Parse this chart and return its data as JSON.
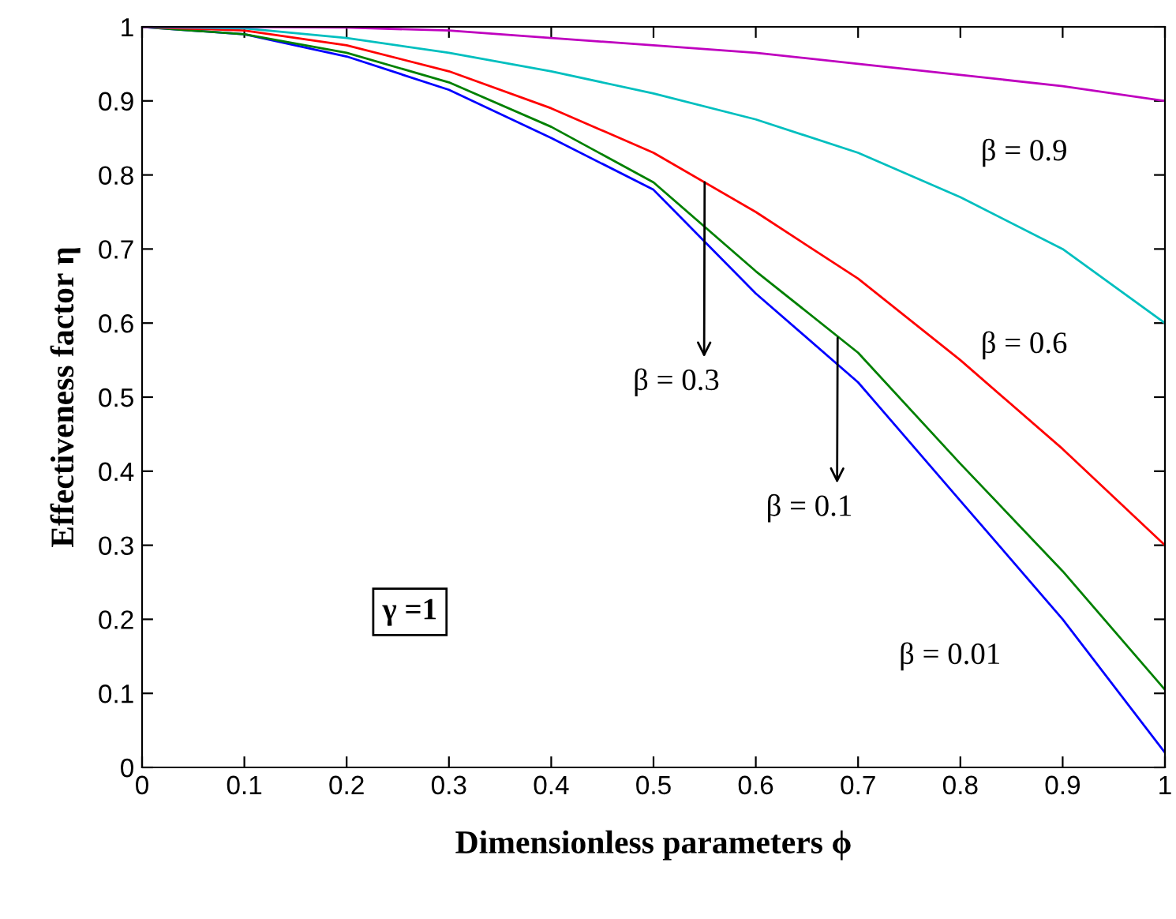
{
  "chart_data": {
    "type": "line",
    "xlabel": "Dimensionless parameters ϕ",
    "ylabel": "Effectiveness factor η",
    "x": [
      0,
      0.1,
      0.2,
      0.3,
      0.4,
      0.5,
      0.6,
      0.7,
      0.8,
      0.9,
      1
    ],
    "series": [
      {
        "color": "#0000ff",
        "values": [
          1,
          0.99,
          0.96,
          0.915,
          0.85,
          0.78,
          0.64,
          0.52,
          0.36,
          0.2,
          0.02
        ]
      },
      {
        "color": "#008000",
        "values": [
          1,
          0.99,
          0.965,
          0.925,
          0.865,
          0.79,
          0.67,
          0.56,
          0.41,
          0.265,
          0.105
        ]
      },
      {
        "color": "#ff0000",
        "values": [
          1,
          0.995,
          0.975,
          0.94,
          0.89,
          0.83,
          0.75,
          0.66,
          0.55,
          0.43,
          0.3
        ]
      },
      {
        "color": "#00bfbf",
        "values": [
          1,
          0.998,
          0.985,
          0.965,
          0.94,
          0.91,
          0.875,
          0.83,
          0.77,
          0.7,
          0.6
        ]
      },
      {
        "color": "#bf00bf",
        "values": [
          1,
          1,
          0.999,
          0.995,
          0.985,
          0.975,
          0.965,
          0.95,
          0.935,
          0.92,
          0.9
        ]
      }
    ],
    "annotations": [
      "γ =1",
      {
        "text": "β = 0.9",
        "x": 0.95,
        "y": 0.91
      },
      {
        "text": "β = 0.6",
        "x": 0.95,
        "y": 0.65
      },
      {
        "text": "β = 0.3",
        "x": 0.55,
        "y": 0.79
      },
      {
        "text": "β = 0.1",
        "x": 0.68,
        "y": 0.58
      },
      {
        "text": "β = 0.01",
        "x": 0.9,
        "y": 0.2
      }
    ],
    "xlim": [
      0,
      1
    ],
    "ylim": [
      0,
      1
    ],
    "xticks": [
      0,
      0.1,
      0.2,
      0.3,
      0.4,
      0.5,
      0.6,
      0.7,
      0.8,
      0.9,
      1
    ],
    "yticks": [
      0,
      0.1,
      0.2,
      0.3,
      0.4,
      0.5,
      0.6,
      0.7,
      0.8,
      0.9,
      1
    ],
    "grid": false,
    "legend": false
  }
}
